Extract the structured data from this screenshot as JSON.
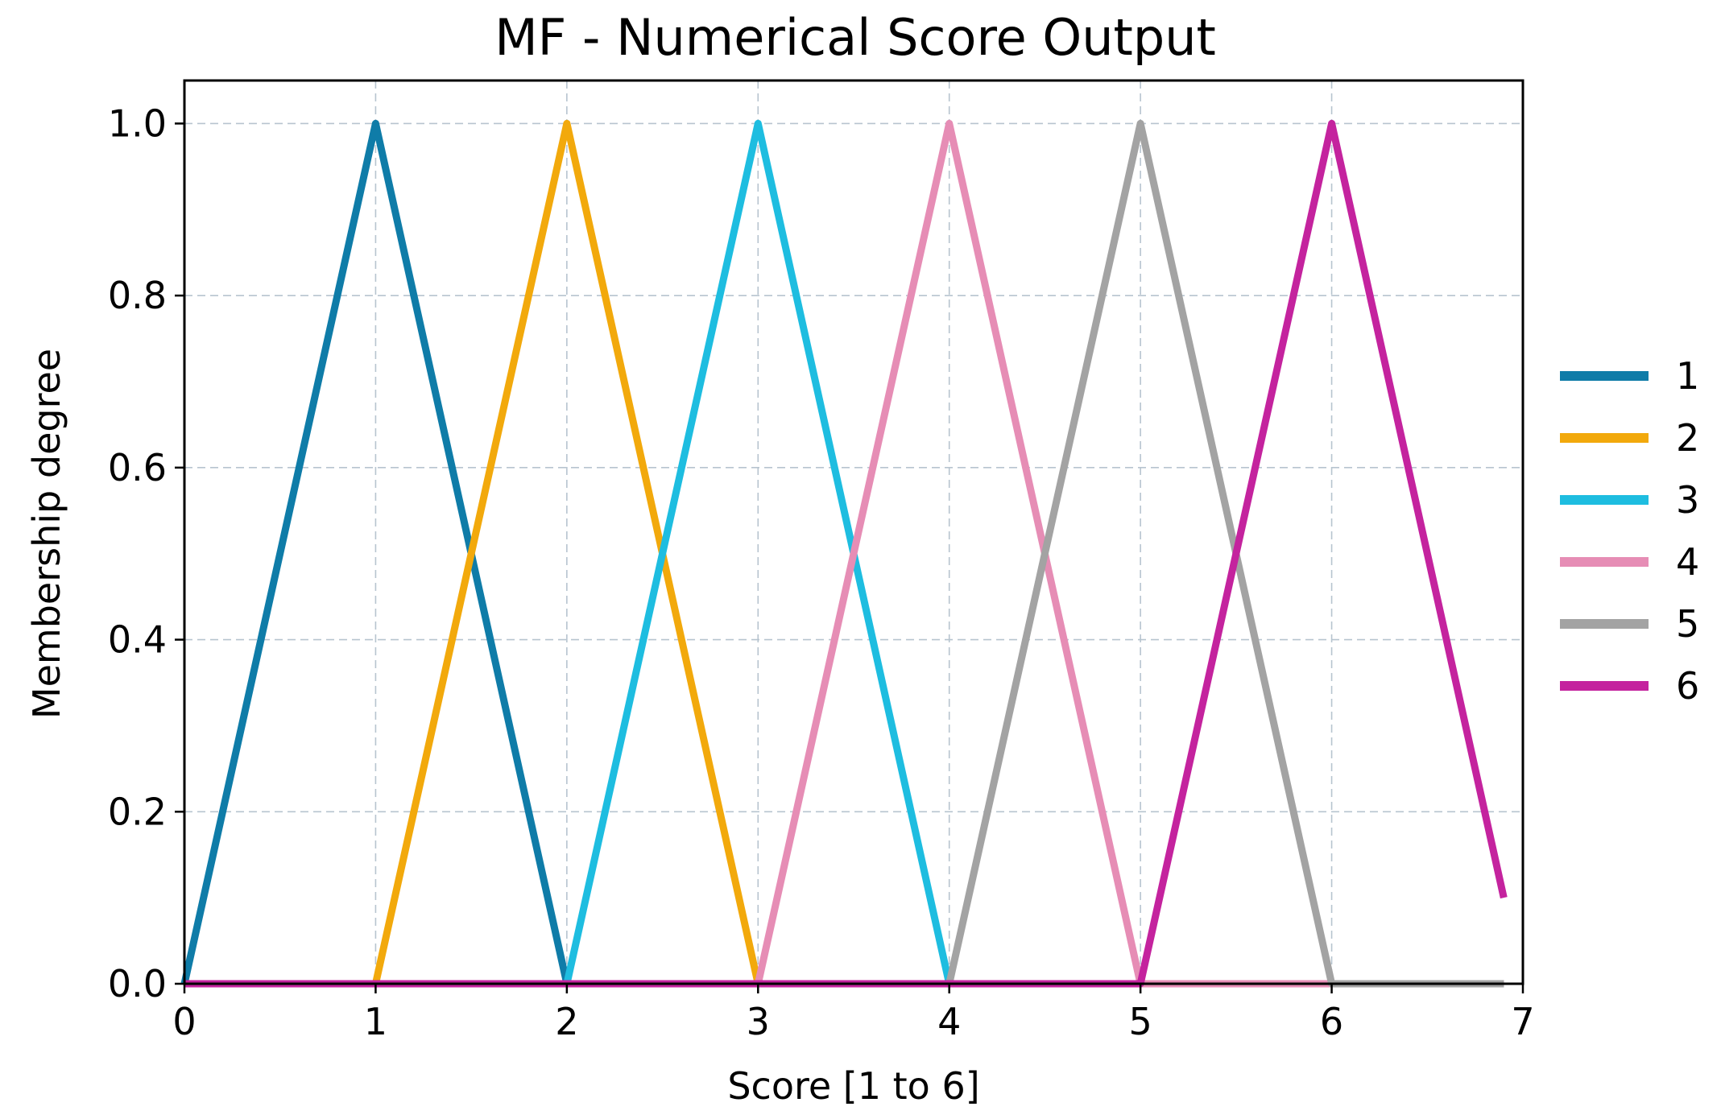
{
  "chart_data": {
    "type": "line",
    "title": "MF - Numerical Score Output",
    "xlabel": "Score [1 to 6]",
    "ylabel": "Membership degree",
    "xlim": [
      0,
      7
    ],
    "ylim": [
      0,
      1.05
    ],
    "xticks": [
      "0",
      "1",
      "2",
      "3",
      "4",
      "5",
      "6",
      "7"
    ],
    "yticks": [
      "0.0",
      "0.2",
      "0.4",
      "0.6",
      "0.8",
      "1.0"
    ],
    "grid": true,
    "legend_position": "center-right-outside",
    "series": [
      {
        "name": "1",
        "color": "#0f7ca8",
        "points": [
          [
            0,
            0
          ],
          [
            1,
            1
          ],
          [
            2,
            0
          ],
          [
            6.9,
            0
          ]
        ]
      },
      {
        "name": "2",
        "color": "#f2a90c",
        "points": [
          [
            0,
            0
          ],
          [
            1,
            0
          ],
          [
            2,
            1
          ],
          [
            3,
            0
          ],
          [
            6.9,
            0
          ]
        ]
      },
      {
        "name": "3",
        "color": "#1ebde0",
        "points": [
          [
            0,
            0
          ],
          [
            2,
            0
          ],
          [
            3,
            1
          ],
          [
            4,
            0
          ],
          [
            6.9,
            0
          ]
        ]
      },
      {
        "name": "4",
        "color": "#e68db5",
        "points": [
          [
            0,
            0
          ],
          [
            3,
            0
          ],
          [
            4,
            1
          ],
          [
            5,
            0
          ],
          [
            6.9,
            0
          ]
        ]
      },
      {
        "name": "5",
        "color": "#a3a3a3",
        "points": [
          [
            0,
            0
          ],
          [
            4,
            0
          ],
          [
            5,
            1
          ],
          [
            6,
            0
          ],
          [
            6.9,
            0
          ]
        ]
      },
      {
        "name": "6",
        "color": "#c4239e",
        "points": [
          [
            0,
            0
          ],
          [
            5,
            0
          ],
          [
            6,
            1
          ],
          [
            6.9,
            0.1
          ]
        ]
      }
    ]
  }
}
